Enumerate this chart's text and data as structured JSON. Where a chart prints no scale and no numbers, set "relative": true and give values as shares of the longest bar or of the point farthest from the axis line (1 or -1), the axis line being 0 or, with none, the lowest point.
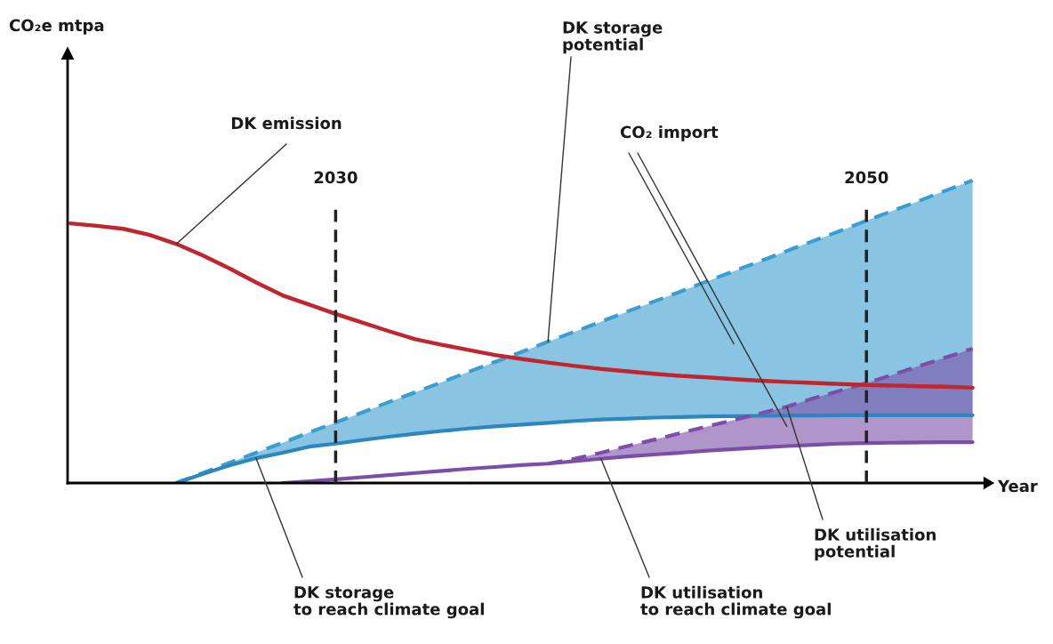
{
  "chart_data": {
    "type": "line",
    "relative": true,
    "xlabel": "Year",
    "marker": "none",
    "categories": [
      null,
      null,
      null,
      null,
      null,
      null,
      null,
      null,
      null,
      null,
      "2030",
      null,
      null,
      null,
      null,
      null,
      null,
      null,
      null,
      null,
      null,
      null,
      null,
      null,
      null,
      null,
      null,
      null,
      null,
      null,
      "2050",
      null,
      null,
      null,
      null
    ],
    "series": [
      {
        "color": "#c0262d",
        "line_style": "solid",
        "values": [
          0.858,
          0.85,
          0.84,
          0.82,
          0.79,
          0.752,
          0.709,
          0.663,
          0.62,
          0.59,
          0.559,
          0.53,
          0.502,
          0.475,
          0.457,
          0.44,
          0.423,
          0.41,
          0.398,
          0.387,
          0.377,
          0.369,
          0.361,
          0.354,
          0.349,
          0.343,
          0.338,
          0.334,
          0.331,
          0.327,
          0.324,
          0.322,
          0.32,
          0.318,
          0.315
        ]
      },
      {
        "color": "#3a9fcf",
        "line_style": "dashed",
        "values": [
          null,
          null,
          null,
          null,
          0,
          0.033,
          0.067,
          0.1,
          0.133,
          0.167,
          0.2,
          0.233,
          0.267,
          0.3,
          0.333,
          0.367,
          0.4,
          0.433,
          0.467,
          0.5,
          0.533,
          0.567,
          0.6,
          0.633,
          0.667,
          0.7,
          0.733,
          0.767,
          0.8,
          0.833,
          0.867,
          0.9,
          0.933,
          0.967,
          1
        ],
        "lower": [
          null,
          null,
          null,
          null,
          0,
          0.03,
          0.058,
          0.082,
          0.1,
          0.12,
          0.13,
          0.142,
          0.153,
          0.163,
          0.172,
          0.18,
          0.187,
          0.193,
          0.199,
          0.205,
          0.21,
          0.213,
          0.216,
          0.218,
          0.22,
          0.221,
          0.222,
          0.223,
          0.223,
          0.224,
          0.224,
          0.224,
          0.224,
          0.224,
          0.224
        ],
        "upper": [
          null,
          null,
          null,
          null,
          0,
          0.033,
          0.067,
          0.1,
          0.133,
          0.167,
          0.2,
          0.233,
          0.267,
          0.3,
          0.333,
          0.367,
          0.4,
          0.433,
          0.467,
          0.5,
          0.533,
          0.567,
          0.6,
          0.633,
          0.667,
          0.7,
          0.733,
          0.767,
          0.8,
          0.833,
          0.867,
          0.9,
          0.933,
          0.967,
          1
        ]
      },
      {
        "color": "#2e86c1",
        "line_style": "solid",
        "values": [
          null,
          null,
          null,
          null,
          0,
          0.03,
          0.058,
          0.082,
          0.1,
          0.12,
          0.13,
          0.142,
          0.153,
          0.163,
          0.172,
          0.18,
          0.187,
          0.193,
          0.199,
          0.205,
          0.21,
          0.213,
          0.216,
          0.218,
          0.22,
          0.221,
          0.222,
          0.223,
          0.223,
          0.224,
          0.224,
          0.224,
          0.224,
          0.224,
          0.224
        ]
      },
      {
        "color": "#7b4fa8",
        "line_style": "dashed",
        "values": [
          null,
          null,
          null,
          null,
          null,
          null,
          null,
          null,
          null,
          null,
          null,
          null,
          null,
          null,
          null,
          null,
          null,
          null,
          0.064,
          0.08,
          0.1,
          0.122,
          0.143,
          0.165,
          0.187,
          0.208,
          0.23,
          0.252,
          0.28,
          0.305,
          0.33,
          0.358,
          0.387,
          0.415,
          0.444
        ],
        "lower": [
          null,
          null,
          null,
          null,
          null,
          null,
          null,
          null,
          null,
          null,
          null,
          null,
          null,
          null,
          null,
          null,
          null,
          null,
          0.064,
          0.072,
          0.08,
          0.088,
          0.094,
          0.1,
          0.107,
          0.112,
          0.117,
          0.122,
          0.126,
          0.13,
          0.132,
          0.133,
          0.134,
          0.135,
          0.135
        ],
        "upper": [
          null,
          null,
          null,
          null,
          null,
          null,
          null,
          null,
          null,
          null,
          null,
          null,
          null,
          null,
          null,
          null,
          null,
          null,
          0.064,
          0.08,
          0.1,
          0.122,
          0.143,
          0.165,
          0.187,
          0.208,
          0.23,
          0.252,
          0.28,
          0.305,
          0.33,
          0.358,
          0.387,
          0.415,
          0.444
        ]
      },
      {
        "color": "#7b4fa8",
        "line_style": "solid",
        "values": [
          null,
          null,
          null,
          null,
          null,
          null,
          null,
          null,
          0,
          0.006,
          0.012,
          0.019,
          0.026,
          0.033,
          0.04,
          0.047,
          0.053,
          0.059,
          0.064,
          0.072,
          0.08,
          0.088,
          0.094,
          0.1,
          0.107,
          0.112,
          0.117,
          0.122,
          0.126,
          0.13,
          0.132,
          0.133,
          0.134,
          0.135,
          0.135
        ]
      }
    ],
    "ref_lines": [
      {
        "axis": "x",
        "value": "2030",
        "color": "#222222",
        "line_style": "dashed"
      },
      {
        "axis": "x",
        "value": "2050",
        "color": "#222222",
        "line_style": "dashed"
      }
    ],
    "annotations": [
      "CO₂e mtpa",
      "DK emission",
      "DK storage\npotential",
      "CO₂ import",
      "DK utilisation\npotential",
      "DK storage\nto reach climate goal",
      "DK utilisation\nto reach climate goal"
    ]
  }
}
